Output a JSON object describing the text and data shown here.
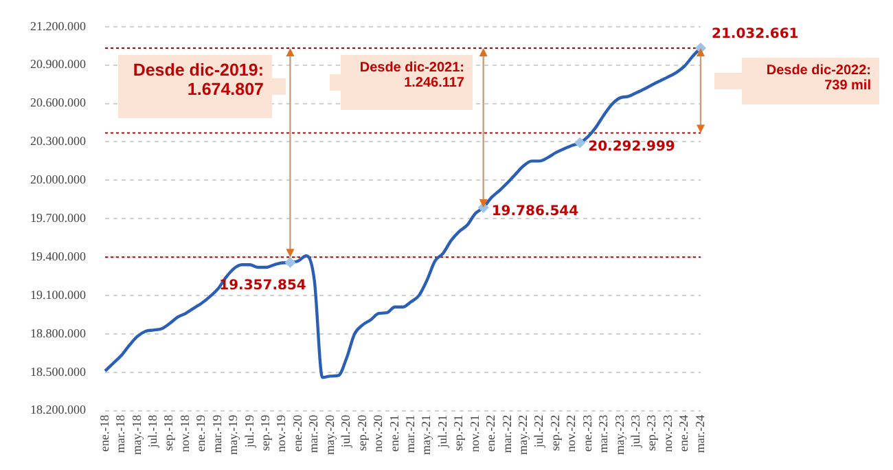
{
  "chart_data": {
    "type": "line",
    "categories": [
      "ene.-18",
      null,
      "mar.-18",
      null,
      "may.-18",
      null,
      "jul.-18",
      null,
      "sep.-18",
      null,
      "nov.-18",
      null,
      "ene.-19",
      null,
      "mar.-19",
      null,
      "may.-19",
      null,
      "jul.-19",
      null,
      "sep.-19",
      null,
      "nov.-19",
      null,
      "ene.-20",
      null,
      "mar.-20",
      null,
      "may.-20",
      null,
      "jul.-20",
      null,
      "sep.-20",
      null,
      "nov.-20",
      null,
      "ene.-21",
      null,
      "mar.-21",
      null,
      "may.-21",
      null,
      "jul.-21",
      null,
      "sep.-21",
      null,
      "nov.-21",
      null,
      "ene.-22",
      null,
      "mar.-22",
      null,
      "may.-22",
      null,
      "jul.-22",
      null,
      "sep.-22",
      null,
      "nov.-22",
      null,
      "ene.-23",
      null,
      "mar.-23",
      null,
      "may.-23",
      null,
      "jul.-23",
      null,
      "sep.-23",
      null,
      "nov.-23",
      null,
      "ene.-24",
      null,
      "mar.-24"
    ],
    "series": [
      {
        "color": "#2b5fb4",
        "values": [
          18510000,
          18570000,
          18630000,
          18710000,
          18780000,
          18820000,
          18830000,
          18840000,
          18880000,
          18930000,
          18960000,
          19000000,
          19040000,
          19090000,
          19150000,
          19240000,
          19310000,
          19340000,
          19340000,
          19320000,
          19320000,
          19340000,
          19355000,
          19357854,
          19370000,
          19410000,
          19220000,
          18460000,
          18470000,
          18475000,
          18610000,
          18800000,
          18870000,
          18910000,
          18960000,
          18965000,
          19010000,
          19010000,
          19050000,
          19100000,
          19220000,
          19370000,
          19430000,
          19530000,
          19600000,
          19650000,
          19740000,
          19786544,
          19865000,
          19920000,
          19980000,
          20048000,
          20113000,
          20150000,
          20150000,
          20177000,
          20216000,
          20245000,
          20272000,
          20292999,
          20341000,
          20416000,
          20512000,
          20595000,
          20644000,
          20655000,
          20683000,
          20713000,
          20747000,
          20778000,
          20809000,
          20843000,
          20892000,
          20968000,
          21032661
        ],
        "value_labels": [
          null,
          null,
          null,
          null,
          null,
          null,
          null,
          null,
          null,
          null,
          null,
          null,
          null,
          null,
          null,
          null,
          null,
          null,
          null,
          null,
          null,
          null,
          null,
          "19.357.854",
          null,
          null,
          null,
          null,
          null,
          null,
          null,
          null,
          null,
          null,
          null,
          null,
          null,
          null,
          null,
          null,
          null,
          null,
          null,
          null,
          null,
          null,
          null,
          "19.786.544",
          null,
          null,
          null,
          null,
          null,
          null,
          null,
          null,
          null,
          null,
          null,
          "20.292.999",
          null,
          null,
          null,
          null,
          null,
          null,
          null,
          null,
          null,
          null,
          null,
          null,
          null,
          null,
          "21.032.661"
        ]
      }
    ],
    "ylim": [
      18200000,
      21200000
    ],
    "yticks": [
      {
        "value": 18200000,
        "label": "18.200.000"
      },
      {
        "value": 18500000,
        "label": "18.500.000"
      },
      {
        "value": 18800000,
        "label": "18.800.000"
      },
      {
        "value": 19100000,
        "label": "19.100.000"
      },
      {
        "value": 19400000,
        "label": "19.400.000"
      },
      {
        "value": 19700000,
        "label": "19.700.000"
      },
      {
        "value": 20000000,
        "label": "20.000.000"
      },
      {
        "value": 20300000,
        "label": "20.300.000"
      },
      {
        "value": 20600000,
        "label": "20.600.000"
      },
      {
        "value": 20900000,
        "label": "20.900.000"
      },
      {
        "value": 21200000,
        "label": "21.200.000"
      }
    ],
    "grid": "y",
    "legend": false,
    "ref_lines": [
      {
        "axis": "y",
        "value": 21032661,
        "color": "#c00000",
        "line_style": "dotted"
      },
      {
        "axis": "y",
        "value": 19400000,
        "color": "#c00000",
        "line_style": "dotted"
      },
      {
        "axis": "y",
        "value": 20370000,
        "color": "#c00000",
        "line_style": "dotted"
      }
    ],
    "annotations": [
      "Desde dic-2019: 1.674.807",
      "Desde dic-2021: 1.246.117",
      "Desde dic-2022: 739 mil"
    ]
  }
}
